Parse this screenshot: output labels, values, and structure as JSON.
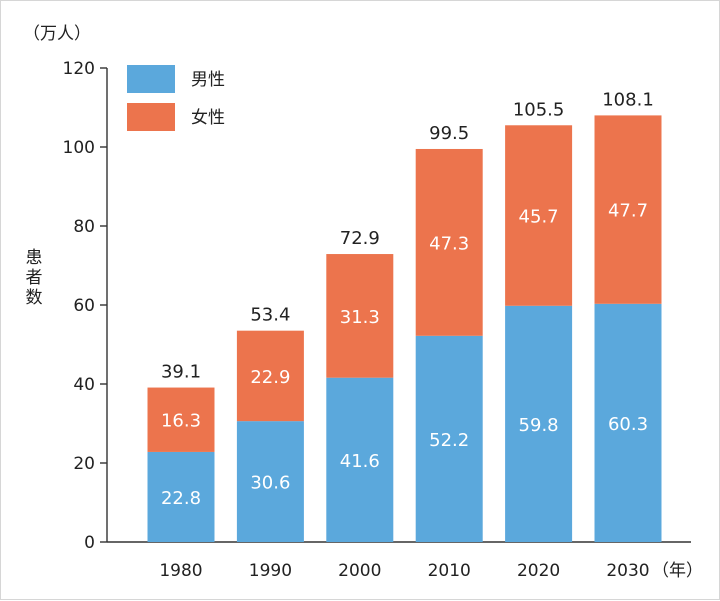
{
  "chart_data": {
    "type": "bar",
    "stacked": true,
    "title": "",
    "unit_label": "（万人）",
    "ylabel": "患者数",
    "x_unit_label": "（年）",
    "ylim": [
      0,
      120
    ],
    "yticks": [
      0,
      20,
      40,
      60,
      80,
      100,
      120
    ],
    "categories": [
      "1980",
      "1990",
      "2000",
      "2010",
      "2020",
      "2030"
    ],
    "series": [
      {
        "name": "男性",
        "color": "#5ba8dc",
        "values": [
          22.8,
          30.6,
          41.6,
          52.2,
          59.8,
          60.3
        ]
      },
      {
        "name": "女性",
        "color": "#ec744d",
        "values": [
          16.3,
          22.9,
          31.3,
          47.3,
          45.7,
          47.7
        ]
      }
    ],
    "totals": [
      "39.1",
      "53.4",
      "72.9",
      "99.5",
      "105.5",
      "108.1"
    ],
    "legend_position": "top-left",
    "grid": false
  }
}
